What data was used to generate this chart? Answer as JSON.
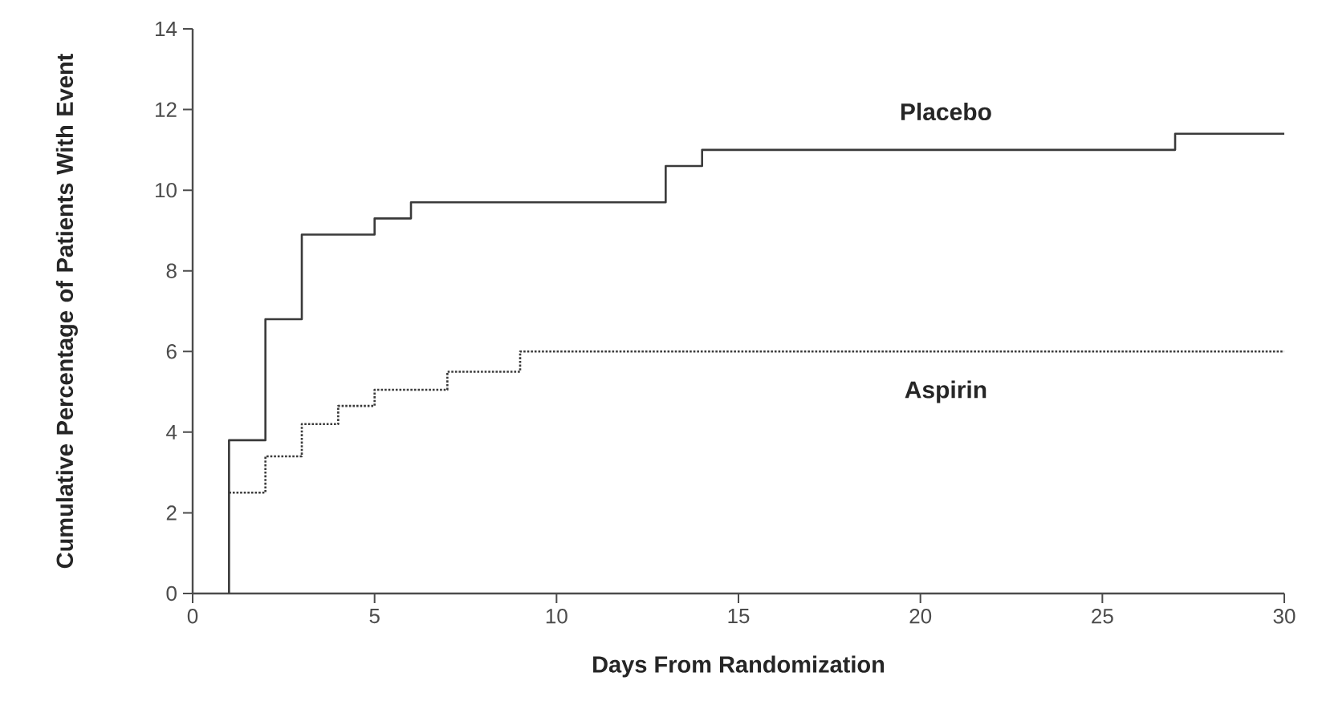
{
  "chart_data": {
    "type": "step",
    "xlabel": "Days From Randomization",
    "ylabel": "Cumulative Percentage of Patients With Event",
    "xlim": [
      0,
      30
    ],
    "ylim": [
      0,
      14
    ],
    "xticks": [
      0,
      5,
      10,
      15,
      20,
      25,
      30
    ],
    "yticks": [
      0,
      2,
      4,
      6,
      8,
      10,
      12,
      14
    ],
    "grid": false,
    "series": [
      {
        "name": "Placebo",
        "color": "#3a3a3a",
        "line_style": "solid",
        "x": [
          1,
          1,
          2,
          3,
          5,
          6,
          13,
          14,
          27,
          30
        ],
        "values": [
          0,
          3.8,
          6.8,
          8.9,
          9.3,
          9.7,
          10.6,
          11.0,
          11.4,
          11.4
        ]
      },
      {
        "name": "Aspirin",
        "color": "#3a3a3a",
        "line_style": "dotted",
        "x": [
          1,
          2,
          3,
          4,
          5,
          7,
          9,
          30
        ],
        "values": [
          2.5,
          3.4,
          4.2,
          4.65,
          5.05,
          5.5,
          6.0,
          6.0
        ]
      }
    ]
  }
}
